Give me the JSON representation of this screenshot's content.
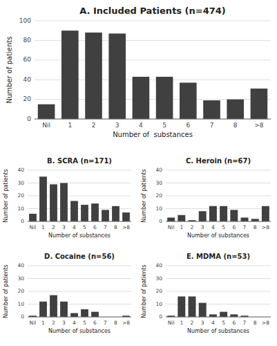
{
  "chart_data": [
    {
      "type": "bar",
      "title": "A. Included Patients (n=474)",
      "categories": [
        "Nil",
        "1",
        "2",
        "3",
        "4",
        "5",
        "6",
        "7",
        "8",
        ">8"
      ],
      "values": [
        15,
        90,
        88,
        87,
        43,
        43,
        37,
        19,
        20,
        31
      ],
      "xlabel": "Number of  substances",
      "ylabel": "Number of patients",
      "ylim": [
        0,
        100
      ],
      "yticks": [
        0,
        20,
        40,
        60,
        80,
        100
      ],
      "color": "#404040",
      "grid": true
    },
    {
      "type": "bar",
      "title": "B. SCRA (n=171)",
      "categories": [
        "Nil",
        "1",
        "2",
        "3",
        "4",
        "5",
        "6",
        "7",
        "8",
        ">8"
      ],
      "values": [
        6,
        35,
        29,
        30,
        16,
        13,
        14,
        9,
        12,
        7
      ],
      "xlabel": "Number of substances",
      "ylabel": "Number of patients",
      "ylim": [
        0,
        40
      ],
      "yticks": [
        0,
        10,
        20,
        30,
        40
      ],
      "color": "#404040",
      "grid": true
    },
    {
      "type": "bar",
      "title": "C. Heroin (n=67)",
      "categories": [
        "Nil",
        "1",
        "2",
        "3",
        "4",
        "5",
        "6",
        "7",
        "8",
        ">8"
      ],
      "values": [
        3,
        5,
        1,
        8,
        12,
        12,
        9,
        3,
        2,
        12
      ],
      "xlabel": "Number of substances",
      "ylabel": "Number of patients",
      "ylim": [
        0,
        40
      ],
      "yticks": [
        0,
        10,
        20,
        30,
        40
      ],
      "color": "#404040",
      "grid": true
    },
    {
      "type": "bar",
      "title": "D. Cocaine (n=56)",
      "categories": [
        "Nil",
        "1",
        "2",
        "3",
        "4",
        "5",
        "6",
        "7",
        "8",
        ">8"
      ],
      "values": [
        1,
        12,
        17,
        12,
        3,
        6,
        4,
        0,
        0,
        1
      ],
      "xlabel": "Number of substances",
      "ylabel": "Number of patients",
      "ylim": [
        0,
        40
      ],
      "yticks": [
        0,
        10,
        20,
        30,
        40
      ],
      "color": "#404040",
      "grid": true
    },
    {
      "type": "bar",
      "title": "E. MDMA (n=53)",
      "categories": [
        "Nil",
        "1",
        "2",
        "3",
        "4",
        "5",
        "6",
        "7",
        "8",
        ">8"
      ],
      "values": [
        1,
        16,
        16,
        11,
        2,
        4,
        2,
        1,
        0,
        0
      ],
      "xlabel": "Number of substances",
      "ylabel": "Number of patients",
      "ylim": [
        0,
        40
      ],
      "yticks": [
        0,
        10,
        20,
        30,
        40
      ],
      "color": "#404040",
      "grid": true
    }
  ]
}
